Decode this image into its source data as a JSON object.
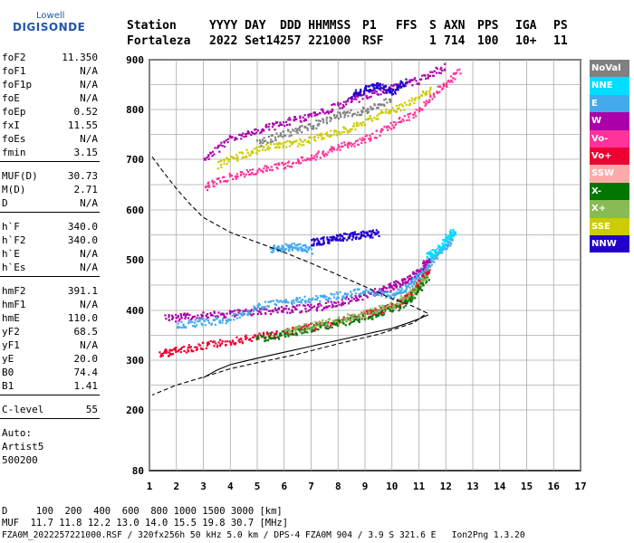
{
  "logo": {
    "brand_top": "Lowell",
    "brand_main": "DIGISONDE"
  },
  "header": {
    "row1": [
      "Station",
      "YYYY DAY",
      "DDD HHMMSS",
      "P1",
      "FFS",
      "S",
      "AXN",
      "PPS",
      "IGA",
      "PS"
    ],
    "row2": [
      "Fortaleza",
      "2022 Set14",
      "257 221000",
      "RSF",
      "",
      "1",
      "714",
      "100",
      "10+",
      "11"
    ]
  },
  "params": [
    [
      {
        "label": "foF2",
        "value": "11.350"
      },
      {
        "label": "foF1",
        "value": "N/A"
      },
      {
        "label": "foF1p",
        "value": "N/A"
      },
      {
        "label": "foE",
        "value": "N/A"
      },
      {
        "label": "foEp",
        "value": "0.52"
      },
      {
        "label": "fxI",
        "value": "11.55"
      },
      {
        "label": "foEs",
        "value": "N/A"
      },
      {
        "label": "fmin",
        "value": "3.15"
      }
    ],
    [
      {
        "label": "MUF(D)",
        "value": "30.73"
      },
      {
        "label": "M(D)",
        "value": "2.71"
      },
      {
        "label": "D",
        "value": "N/A"
      }
    ],
    [
      {
        "label": "h`F",
        "value": "340.0"
      },
      {
        "label": "h`F2",
        "value": "340.0"
      },
      {
        "label": "h`E",
        "value": "N/A"
      },
      {
        "label": "h`Es",
        "value": "N/A"
      }
    ],
    [
      {
        "label": "hmF2",
        "value": "391.1"
      },
      {
        "label": "hmF1",
        "value": "N/A"
      },
      {
        "label": "hmE",
        "value": "110.0"
      },
      {
        "label": "yF2",
        "value": "68.5"
      },
      {
        "label": "yF1",
        "value": "N/A"
      },
      {
        "label": "yE",
        "value": "20.0"
      },
      {
        "label": "B0",
        "value": "74.4"
      },
      {
        "label": "B1",
        "value": "1.41"
      }
    ],
    [
      {
        "label": "C-level",
        "value": "55"
      }
    ]
  ],
  "notes": [
    "Auto:",
    "Artist5",
    "500200"
  ],
  "legend": [
    {
      "label": "NoVal",
      "color": "#808080"
    },
    {
      "label": "NNE",
      "color": "#00ddff"
    },
    {
      "label": "E",
      "color": "#44aaee"
    },
    {
      "label": "W",
      "color": "#aa00aa"
    },
    {
      "label": "Vo-",
      "color": "#ff3399"
    },
    {
      "label": "Vo+",
      "color": "#ee0033"
    },
    {
      "label": "SSW",
      "color": "#ffaaaa"
    },
    {
      "label": "X-",
      "color": "#007700"
    },
    {
      "label": "X+",
      "color": "#88bb55"
    },
    {
      "label": "SSE",
      "color": "#cccc00"
    },
    {
      "label": "NNW",
      "color": "#2200cc"
    }
  ],
  "footer": {
    "line1": "D     100  200  400  600  800 1000 1500 3000 [km]",
    "line2": "MUF  11.7 11.8 12.2 13.0 14.0 15.5 19.8 30.7 [MHz]",
    "line3": "FZA0M_2022257221000.RSF / 320fx256h 50 kHz 5.0 km / DPS-4 FZA0M 904 / 3.9 S 321.6 E   Ion2Png 1.3.20"
  },
  "chart_data": {
    "type": "scatter",
    "x_ticks": [
      "1",
      "2",
      "3",
      "4",
      "5",
      "6",
      "7",
      "8",
      "9",
      "10",
      "11",
      "12",
      "13",
      "14",
      "15",
      "16",
      "17"
    ],
    "y_ticks": [
      "900",
      "800",
      "700",
      "600",
      "500",
      "400",
      "300",
      "200",
      "80"
    ],
    "xlim": [
      1,
      17
    ],
    "ylim": [
      80,
      900
    ],
    "grid": true,
    "legend_position": "right",
    "curves": {
      "profile_dashed": [
        [
          1.1,
          705
        ],
        [
          1.5,
          676
        ],
        [
          2.0,
          642
        ],
        [
          2.5,
          612
        ],
        [
          3.0,
          585
        ],
        [
          4.0,
          555
        ],
        [
          5.0,
          535
        ],
        [
          6.0,
          515
        ],
        [
          7.0,
          493
        ],
        [
          8.0,
          470
        ],
        [
          9.0,
          447
        ],
        [
          10.0,
          423
        ],
        [
          10.7,
          410
        ],
        [
          11.3,
          395
        ],
        [
          10.8,
          375
        ],
        [
          9.5,
          352
        ],
        [
          8.0,
          333
        ],
        [
          6.5,
          312
        ],
        [
          5.0,
          295
        ],
        [
          4.0,
          283
        ],
        [
          3.0,
          266
        ],
        [
          2.0,
          250
        ],
        [
          1.1,
          230
        ]
      ],
      "virtual_height_solid": [
        [
          3.0,
          265
        ],
        [
          3.5,
          280
        ],
        [
          4.0,
          291
        ],
        [
          5.0,
          304
        ],
        [
          6.0,
          316
        ],
        [
          7.0,
          328
        ],
        [
          8.0,
          340
        ],
        [
          9.0,
          352
        ],
        [
          10.0,
          364
        ],
        [
          10.6,
          375
        ],
        [
          11.0,
          383
        ],
        [
          11.35,
          391
        ]
      ]
    },
    "echo_traces": [
      {
        "name": "Vo+",
        "color": "#ee0033",
        "points": [
          [
            1.4,
            314
          ],
          [
            2.0,
            322
          ],
          [
            3.0,
            330
          ],
          [
            4.0,
            340
          ],
          [
            5.0,
            348
          ],
          [
            6.0,
            358
          ],
          [
            7.0,
            368
          ],
          [
            8.0,
            380
          ],
          [
            9.0,
            393
          ],
          [
            9.5,
            400
          ],
          [
            10.0,
            410
          ],
          [
            10.5,
            425
          ],
          [
            10.8,
            440
          ],
          [
            11.0,
            455
          ],
          [
            11.2,
            475
          ],
          [
            11.35,
            485
          ]
        ]
      },
      {
        "name": "X-",
        "color": "#007700",
        "points": [
          [
            5.0,
            344
          ],
          [
            6.0,
            354
          ],
          [
            7.0,
            364
          ],
          [
            8.0,
            376
          ],
          [
            9.0,
            388
          ],
          [
            10.0,
            404
          ],
          [
            10.6,
            420
          ],
          [
            11.0,
            445
          ],
          [
            11.3,
            470
          ]
        ]
      },
      {
        "name": "X+",
        "color": "#88bb55",
        "points": [
          [
            6.0,
            360
          ],
          [
            7.0,
            370
          ],
          [
            8.0,
            382
          ],
          [
            9.0,
            395
          ],
          [
            10.0,
            412
          ],
          [
            10.8,
            440
          ],
          [
            11.3,
            478
          ]
        ]
      },
      {
        "name": "W",
        "color": "#aa00aa",
        "points": [
          [
            1.6,
            385
          ],
          [
            2.5,
            390
          ],
          [
            3.5,
            392
          ],
          [
            4.5,
            397
          ],
          [
            5.5,
            402
          ],
          [
            6.5,
            405
          ],
          [
            7.5,
            410
          ],
          [
            8.5,
            425
          ],
          [
            9.5,
            440
          ],
          [
            10.0,
            450
          ],
          [
            10.5,
            460
          ],
          [
            11.0,
            480
          ],
          [
            11.4,
            505
          ]
        ]
      },
      {
        "name": "E",
        "color": "#44aaee",
        "points": [
          [
            2.0,
            372
          ],
          [
            3.0,
            378
          ],
          [
            4.0,
            384
          ],
          [
            5.0,
            410
          ],
          [
            6.0,
            418
          ],
          [
            7.0,
            425
          ],
          [
            8.0,
            432
          ],
          [
            9.0,
            440
          ],
          [
            10.0,
            430
          ],
          [
            10.5,
            445
          ],
          [
            11.0,
            470
          ],
          [
            11.6,
            510
          ],
          [
            12.0,
            530
          ],
          [
            12.3,
            555
          ]
        ]
      },
      {
        "name": "NNE",
        "color": "#00ddff",
        "points": [
          [
            11.3,
            510
          ],
          [
            11.7,
            520
          ],
          [
            12.0,
            545
          ],
          [
            12.3,
            560
          ]
        ]
      },
      {
        "name": "NNW",
        "color": "#2200cc",
        "points": [
          [
            7.0,
            537
          ],
          [
            7.5,
            540
          ],
          [
            8.0,
            545
          ],
          [
            8.5,
            550
          ],
          [
            9.0,
            552
          ],
          [
            9.5,
            555
          ]
        ]
      },
      {
        "name": "E",
        "color": "#44aaee",
        "points": [
          [
            5.5,
            524
          ],
          [
            6.0,
            526
          ],
          [
            6.5,
            528
          ],
          [
            7.0,
            520
          ]
        ]
      },
      {
        "name": "Vo-",
        "color": "#ff3399",
        "points": [
          [
            3.0,
            645
          ],
          [
            4.0,
            668
          ],
          [
            5.0,
            680
          ],
          [
            6.0,
            690
          ],
          [
            7.0,
            705
          ],
          [
            8.0,
            725
          ],
          [
            9.0,
            742
          ],
          [
            10.0,
            770
          ],
          [
            11.0,
            800
          ],
          [
            11.8,
            845
          ],
          [
            12.5,
            880
          ]
        ]
      },
      {
        "name": "W",
        "color": "#aa00aa",
        "points": [
          [
            3.0,
            700
          ],
          [
            4.0,
            745
          ],
          [
            5.0,
            760
          ],
          [
            6.0,
            775
          ],
          [
            7.0,
            790
          ],
          [
            8.0,
            810
          ],
          [
            9.0,
            830
          ],
          [
            10.0,
            845
          ],
          [
            11.0,
            860
          ],
          [
            12.0,
            890
          ]
        ]
      },
      {
        "name": "SSE",
        "color": "#cccc00",
        "points": [
          [
            3.5,
            690
          ],
          [
            4.5,
            712
          ],
          [
            5.5,
            730
          ],
          [
            6.5,
            735
          ],
          [
            7.5,
            750
          ],
          [
            8.5,
            765
          ],
          [
            9.5,
            790
          ],
          [
            10.5,
            810
          ],
          [
            11.5,
            845
          ]
        ]
      },
      {
        "name": "NNW",
        "color": "#2200cc",
        "points": [
          [
            8.5,
            830
          ],
          [
            9.0,
            842
          ],
          [
            9.5,
            850
          ],
          [
            10.0,
            838
          ],
          [
            10.5,
            860
          ]
        ]
      },
      {
        "name": "NoVal",
        "color": "#808080",
        "points": [
          [
            5.0,
            735
          ],
          [
            6.0,
            752
          ],
          [
            7.0,
            768
          ],
          [
            8.0,
            790
          ],
          [
            9.0,
            800
          ],
          [
            10.0,
            820
          ]
        ]
      }
    ]
  }
}
